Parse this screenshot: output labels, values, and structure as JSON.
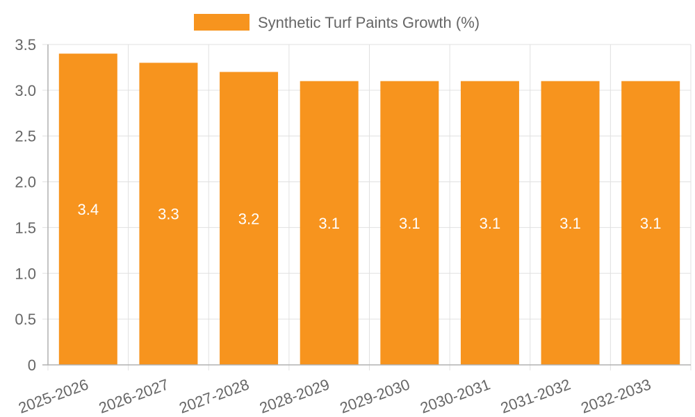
{
  "chart_data": {
    "type": "bar",
    "title": "",
    "xlabel": "",
    "ylabel": "",
    "categories": [
      "2025-2026",
      "2026-2027",
      "2027-2028",
      "2028-2029",
      "2029-2030",
      "2030-2031",
      "2031-2032",
      "2032-2033"
    ],
    "series": [
      {
        "name": "Synthetic Turf Paints Growth (%)",
        "values": [
          3.4,
          3.3,
          3.2,
          3.1,
          3.1,
          3.1,
          3.1,
          3.1
        ],
        "data_labels": [
          "3.4",
          "3.3",
          "3.2",
          "3.1",
          "3.1",
          "3.1",
          "3.1",
          "3.1"
        ],
        "color": "#F7941E"
      }
    ],
    "ylim": [
      0,
      3.5
    ],
    "yticks": [
      0,
      0.5,
      1.0,
      1.5,
      2.0,
      2.5,
      3.0,
      3.5
    ],
    "ytick_labels": [
      "0",
      "0.5",
      "1.0",
      "1.5",
      "2.0",
      "2.5",
      "3.0",
      "3.5"
    ],
    "grid": true,
    "legend_position": "top-center",
    "colors": {
      "grid": "#e0e0e0",
      "axis": "#b0b0b0",
      "text": "#666666",
      "label": "#ffffff"
    }
  }
}
